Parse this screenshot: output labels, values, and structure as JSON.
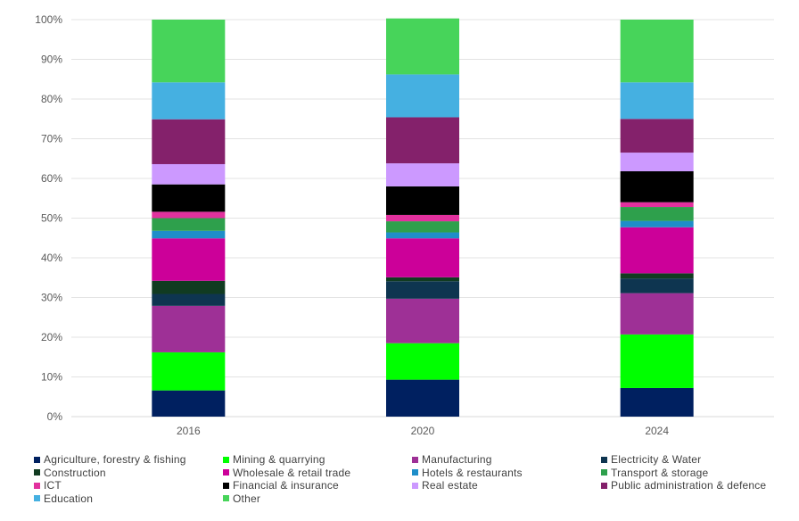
{
  "chart_data": {
    "type": "bar",
    "stacked": true,
    "percent": true,
    "categories": [
      "2016",
      "2020",
      "2024"
    ],
    "ylim": [
      0,
      100
    ],
    "yticks": [
      "0%",
      "10%",
      "20%",
      "30%",
      "40%",
      "50%",
      "60%",
      "70%",
      "80%",
      "90%",
      "100%"
    ],
    "grid": true,
    "legend_position": "bottom",
    "series": [
      {
        "name": "Agriculture, forestry & fishing",
        "color": "#002060",
        "values": [
          6.6,
          9.3,
          7.2
        ]
      },
      {
        "name": "Mining & quarrying",
        "color": "#00FF00",
        "values": [
          9.6,
          9.2,
          13.5
        ]
      },
      {
        "name": "Manufacturing",
        "color": "#9E3096",
        "values": [
          11.7,
          11.2,
          10.4
        ]
      },
      {
        "name": "Electricity & Water",
        "color": "#0E3550",
        "values": [
          3.0,
          4.4,
          3.7
        ]
      },
      {
        "name": "Construction",
        "color": "#113B21",
        "values": [
          3.3,
          1.0,
          1.3
        ]
      },
      {
        "name": "Wholesale & retail trade",
        "color": "#CC0099",
        "values": [
          10.7,
          9.8,
          11.6
        ]
      },
      {
        "name": "Hotels & restaurants",
        "color": "#1F8EC9",
        "values": [
          1.9,
          1.5,
          1.6
        ]
      },
      {
        "name": "Transport & storage",
        "color": "#2EA04C",
        "values": [
          3.2,
          2.8,
          3.5
        ]
      },
      {
        "name": "ICT",
        "color": "#E2319E",
        "values": [
          1.6,
          1.6,
          1.2
        ]
      },
      {
        "name": "Financial & insurance",
        "color": "#000000",
        "values": [
          6.9,
          7.2,
          7.8
        ]
      },
      {
        "name": "Real estate",
        "color": "#CC99FF",
        "values": [
          5.1,
          5.8,
          4.7
        ]
      },
      {
        "name": "Public administration & defence",
        "color": "#84216B",
        "values": [
          11.3,
          11.6,
          8.5
        ]
      },
      {
        "name": "Education",
        "color": "#45B0E1",
        "values": [
          9.3,
          10.8,
          9.2
        ]
      },
      {
        "name": "Other",
        "color": "#47D45A",
        "values": [
          15.8,
          14.1,
          15.8
        ]
      }
    ]
  }
}
